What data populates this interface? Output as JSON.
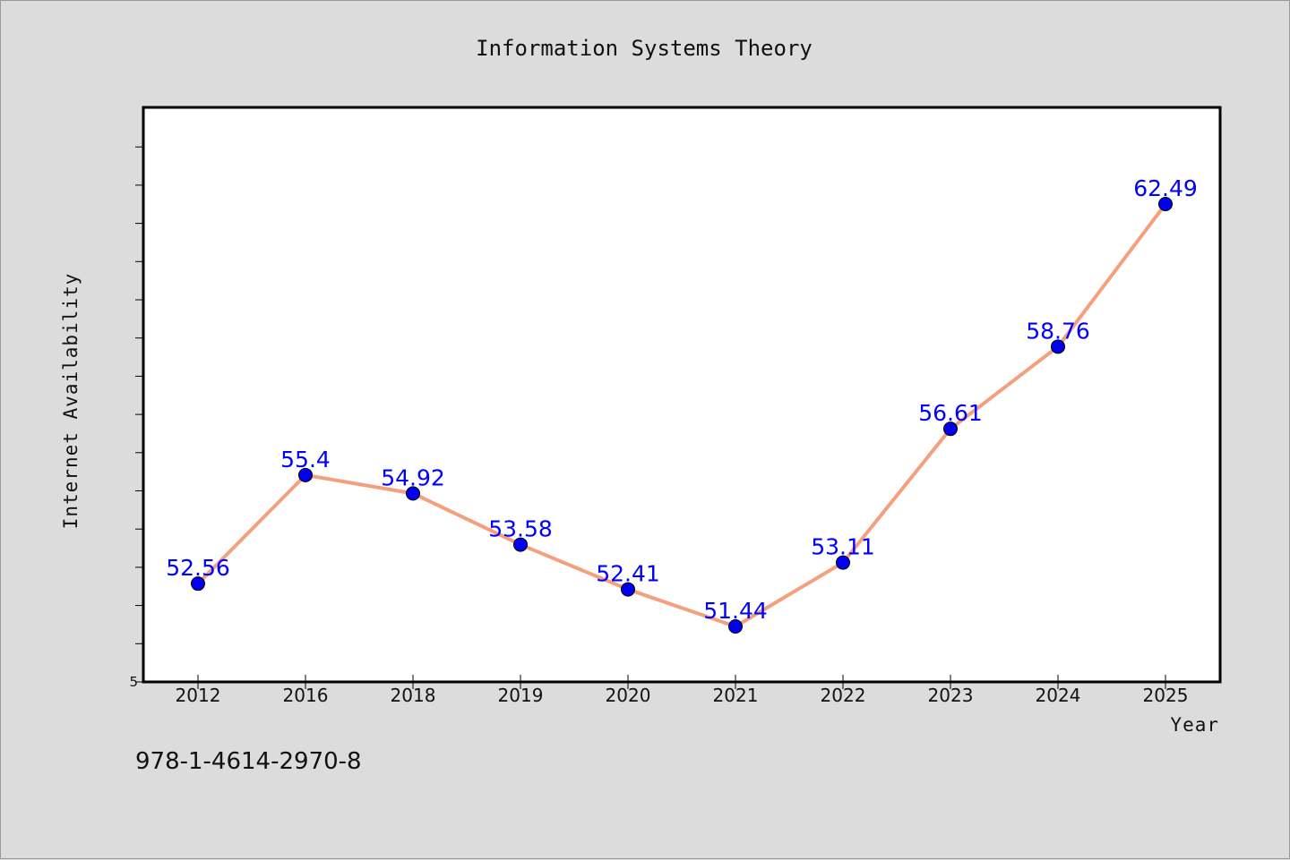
{
  "chart_data": {
    "type": "line",
    "title": "Information Systems Theory",
    "xlabel": "Year",
    "ylabel": "Internet Availability",
    "categories": [
      "2012",
      "2016",
      "2018",
      "2019",
      "2020",
      "2021",
      "2022",
      "2023",
      "2024",
      "2025"
    ],
    "series": [
      {
        "values": [
          52.56,
          55.4,
          54.92,
          53.58,
          52.41,
          51.44,
          53.11,
          56.61,
          58.76,
          62.49
        ],
        "line_color": "#f4a07f",
        "marker_color": "#0000ee",
        "label_color": "#0000ff"
      }
    ],
    "ytick_labels": [
      "5"
    ],
    "grid": false,
    "legend": "none"
  },
  "footer": {
    "isbn": "978-1-4614-2970-8"
  }
}
